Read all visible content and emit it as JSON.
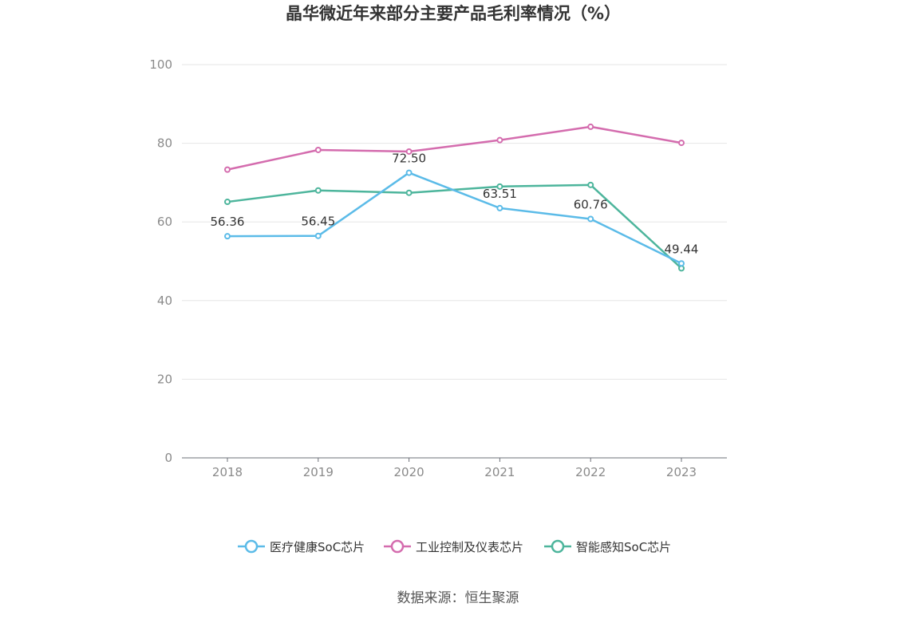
{
  "chart_data": {
    "type": "line",
    "title": "晶华微近年来部分主要产品毛利率情况（%）",
    "x": [
      "2018",
      "2019",
      "2020",
      "2021",
      "2022",
      "2023"
    ],
    "ylim": [
      0,
      100
    ],
    "yticks": [
      0,
      20,
      40,
      60,
      80,
      100
    ],
    "grid": true,
    "legend_position": "bottom",
    "series": [
      {
        "name": "医疗健康SoC芯片",
        "color": "#5bbbe8",
        "values": [
          56.36,
          56.45,
          72.5,
          63.51,
          60.76,
          49.44
        ],
        "labels": [
          "56.36",
          "56.45",
          "72.50",
          "63.51",
          "60.76",
          "49.44"
        ]
      },
      {
        "name": "工业控制及仪表芯片",
        "color": "#d46cae",
        "values": [
          73.3,
          78.3,
          77.9,
          80.8,
          84.2,
          80.1
        ],
        "labels": null
      },
      {
        "name": "智能感知SoC芯片",
        "color": "#4db59c",
        "values": [
          65.1,
          68.0,
          67.4,
          69.0,
          69.4,
          48.2
        ],
        "labels": null
      }
    ],
    "source": "数据来源：恒生聚源"
  }
}
